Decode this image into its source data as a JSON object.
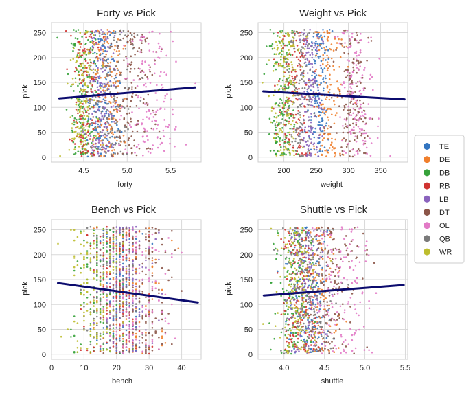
{
  "colors": {
    "plot_bg": "#ffffff",
    "grid": "#d9d9d9",
    "spine": "#cfcfcf",
    "text": "#262626",
    "regression_line": "#0b0b6e"
  },
  "legend": {
    "placement": "right-center",
    "entries": [
      {
        "label": "TE",
        "color": "#3274c0"
      },
      {
        "label": "DE",
        "color": "#f07f2d"
      },
      {
        "label": "DB",
        "color": "#36a23a"
      },
      {
        "label": "RB",
        "color": "#d03230"
      },
      {
        "label": "LB",
        "color": "#8a63bd"
      },
      {
        "label": "DT",
        "color": "#8b5548"
      },
      {
        "label": "OL",
        "color": "#e27ac6"
      },
      {
        "label": "QB",
        "color": "#7a7a7a"
      },
      {
        "label": "WR",
        "color": "#bdbd2d"
      }
    ]
  },
  "chart_data": [
    {
      "type": "scatter",
      "title": "Forty vs Pick",
      "xlabel": "forty",
      "ylabel": "pick",
      "xlim": [
        4.13,
        5.85
      ],
      "ylim": [
        -10,
        270
      ],
      "xticks": [
        4.5,
        5.0,
        5.5
      ],
      "xtick_labels": [
        "4.5",
        "5.0",
        "5.5"
      ],
      "yticks": [
        0,
        50,
        100,
        150,
        200,
        250
      ],
      "ytick_labels": [
        "0",
        "50",
        "100",
        "150",
        "200",
        "250"
      ],
      "grid": true,
      "pick_range": [
        1,
        256
      ],
      "regression": {
        "x": [
          4.22,
          5.78
        ],
        "y": [
          118,
          140
        ]
      },
      "groups": [
        {
          "position": "TE",
          "x_center": 4.72,
          "x_spread": 0.09
        },
        {
          "position": "DE",
          "x_center": 4.79,
          "x_spread": 0.09
        },
        {
          "position": "DB",
          "x_center": 4.49,
          "x_spread": 0.08
        },
        {
          "position": "RB",
          "x_center": 4.52,
          "x_spread": 0.09
        },
        {
          "position": "LB",
          "x_center": 4.71,
          "x_spread": 0.09
        },
        {
          "position": "DT",
          "x_center": 5.03,
          "x_spread": 0.14
        },
        {
          "position": "OL",
          "x_center": 5.25,
          "x_spread": 0.17
        },
        {
          "position": "QB",
          "x_center": 4.82,
          "x_spread": 0.14
        },
        {
          "position": "WR",
          "x_center": 4.5,
          "x_spread": 0.08
        }
      ]
    },
    {
      "type": "scatter",
      "title": "Weight vs Pick",
      "xlabel": "weight",
      "ylabel": "pick",
      "xlim": [
        160,
        392
      ],
      "ylim": [
        -10,
        270
      ],
      "xticks": [
        200,
        250,
        300,
        350
      ],
      "xtick_labels": [
        "200",
        "250",
        "300",
        "350"
      ],
      "yticks": [
        0,
        50,
        100,
        150,
        200,
        250
      ],
      "ytick_labels": [
        "0",
        "50",
        "100",
        "150",
        "200",
        "250"
      ],
      "grid": true,
      "pick_range": [
        1,
        256
      ],
      "regression": {
        "x": [
          168,
          387
        ],
        "y": [
          132,
          116
        ]
      },
      "groups": [
        {
          "position": "TE",
          "x_center": 254,
          "x_spread": 8
        },
        {
          "position": "DE",
          "x_center": 268,
          "x_spread": 12
        },
        {
          "position": "DB",
          "x_center": 197,
          "x_spread": 11
        },
        {
          "position": "RB",
          "x_center": 216,
          "x_spread": 13
        },
        {
          "position": "LB",
          "x_center": 241,
          "x_spread": 9
        },
        {
          "position": "DT",
          "x_center": 306,
          "x_spread": 14
        },
        {
          "position": "OL",
          "x_center": 312,
          "x_spread": 14
        },
        {
          "position": "QB",
          "x_center": 224,
          "x_spread": 12
        },
        {
          "position": "WR",
          "x_center": 203,
          "x_spread": 13
        }
      ]
    },
    {
      "type": "scatter",
      "title": "Bench vs Pick",
      "xlabel": "bench",
      "ylabel": "pick",
      "xlim": [
        0,
        46
      ],
      "ylim": [
        -10,
        270
      ],
      "xticks": [
        0,
        10,
        20,
        30,
        40
      ],
      "xtick_labels": [
        "0",
        "10",
        "20",
        "30",
        "40"
      ],
      "yticks": [
        0,
        50,
        100,
        150,
        200,
        250
      ],
      "ytick_labels": [
        "0",
        "50",
        "100",
        "150",
        "200",
        "250"
      ],
      "grid": true,
      "pick_range": [
        1,
        256
      ],
      "integer_x": true,
      "regression": {
        "x": [
          2,
          45
        ],
        "y": [
          143,
          104
        ]
      },
      "groups": [
        {
          "position": "TE",
          "x_center": 21,
          "x_spread": 4
        },
        {
          "position": "DE",
          "x_center": 24,
          "x_spread": 5
        },
        {
          "position": "DB",
          "x_center": 15,
          "x_spread": 4
        },
        {
          "position": "RB",
          "x_center": 20,
          "x_spread": 4
        },
        {
          "position": "LB",
          "x_center": 23,
          "x_spread": 4
        },
        {
          "position": "DT",
          "x_center": 28,
          "x_spread": 5
        },
        {
          "position": "OL",
          "x_center": 26,
          "x_spread": 5
        },
        {
          "position": "QB",
          "x_center": 18,
          "x_spread": 5
        },
        {
          "position": "WR",
          "x_center": 14,
          "x_spread": 4
        }
      ]
    },
    {
      "type": "scatter",
      "title": "Shuttle vs Pick",
      "xlabel": "shuttle",
      "ylabel": "pick",
      "xlim": [
        3.68,
        5.53
      ],
      "ylim": [
        -10,
        270
      ],
      "xticks": [
        4.0,
        4.5,
        5.0,
        5.5
      ],
      "xtick_labels": [
        "4.0",
        "4.5",
        "5.0",
        "5.5"
      ],
      "yticks": [
        0,
        50,
        100,
        150,
        200,
        250
      ],
      "ytick_labels": [
        "0",
        "50",
        "100",
        "150",
        "200",
        "250"
      ],
      "grid": true,
      "pick_range": [
        1,
        256
      ],
      "regression": {
        "x": [
          3.75,
          5.48
        ],
        "y": [
          118,
          139
        ]
      },
      "groups": [
        {
          "position": "TE",
          "x_center": 4.3,
          "x_spread": 0.13
        },
        {
          "position": "DE",
          "x_center": 4.38,
          "x_spread": 0.14
        },
        {
          "position": "DB",
          "x_center": 4.13,
          "x_spread": 0.12
        },
        {
          "position": "RB",
          "x_center": 4.2,
          "x_spread": 0.12
        },
        {
          "position": "LB",
          "x_center": 4.28,
          "x_spread": 0.12
        },
        {
          "position": "DT",
          "x_center": 4.58,
          "x_spread": 0.18
        },
        {
          "position": "OL",
          "x_center": 4.68,
          "x_spread": 0.2
        },
        {
          "position": "QB",
          "x_center": 4.3,
          "x_spread": 0.15
        },
        {
          "position": "WR",
          "x_center": 4.15,
          "x_spread": 0.12
        }
      ]
    }
  ]
}
